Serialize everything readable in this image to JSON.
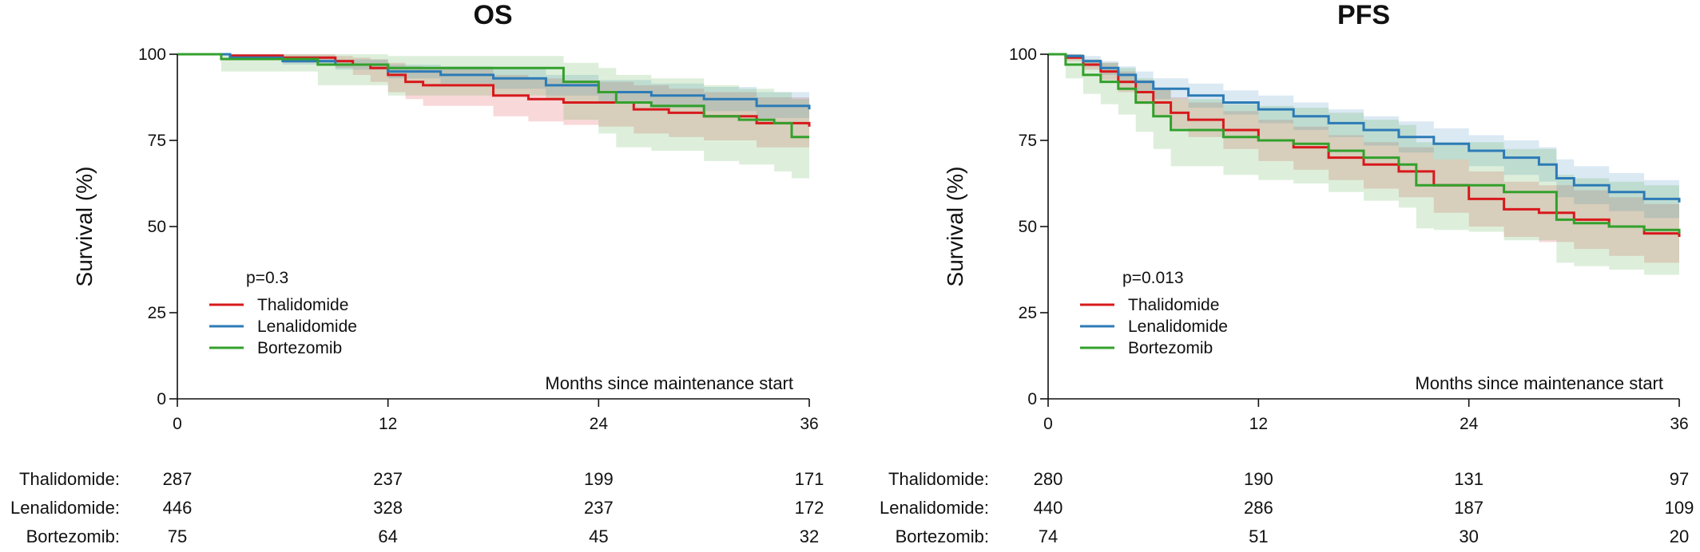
{
  "chart_data": [
    {
      "type": "line",
      "title": "OS",
      "xlabel": "Months since maintenance start",
      "ylabel": "Survival (%)",
      "xlim": [
        0,
        36
      ],
      "ylim": [
        0,
        100
      ],
      "xticks": [
        0,
        12,
        24,
        36
      ],
      "yticks": [
        0,
        25,
        50,
        75,
        100
      ],
      "grid": false,
      "legend_position": "lower-left",
      "annotation": "p=0.3",
      "series": [
        {
          "name": "Thalidomide",
          "color": "#d7191c",
          "x": [
            0,
            3,
            6,
            9,
            10,
            11,
            12,
            13,
            14,
            18,
            20,
            22,
            24,
            26,
            28,
            30,
            33,
            36
          ],
          "y": [
            100,
            99.6,
            99,
            98,
            97,
            96,
            94,
            92,
            91,
            88,
            87,
            86,
            86,
            84,
            83,
            82,
            80,
            79
          ],
          "lower": [
            100,
            99,
            97.5,
            96,
            94,
            92,
            89,
            87,
            85,
            82,
            80.5,
            79.5,
            79,
            77,
            76,
            75,
            73,
            72
          ],
          "upper": [
            100,
            100,
            100,
            99.5,
            99,
            98.5,
            97.5,
            96.5,
            96,
            94,
            93,
            92.5,
            92,
            91,
            90,
            89,
            87.5,
            86.5
          ]
        },
        {
          "name": "Lenalidomide",
          "color": "#2c7bb6",
          "x": [
            0,
            3,
            6,
            9,
            12,
            15,
            18,
            21,
            24,
            27,
            30,
            33,
            36
          ],
          "y": [
            100,
            99,
            98,
            97,
            95,
            94,
            93,
            91,
            89,
            88,
            87,
            85,
            84
          ],
          "lower": [
            100,
            98.5,
            97,
            95.5,
            93,
            91.5,
            90,
            88,
            86,
            84.5,
            83.5,
            81.5,
            80.5
          ],
          "upper": [
            100,
            100,
            99.5,
            98.5,
            97,
            96.5,
            96,
            94,
            92.5,
            91.5,
            90.5,
            89,
            88
          ]
        },
        {
          "name": "Bortezomib",
          "color": "#33a02c",
          "x": [
            0,
            2.5,
            8,
            12,
            15,
            21,
            22,
            24,
            25,
            27,
            30,
            32,
            34,
            35,
            36
          ],
          "y": [
            100,
            98.6,
            97,
            96,
            96,
            96,
            92,
            89,
            86,
            85,
            82,
            81,
            80,
            76,
            76
          ],
          "lower": [
            100,
            95,
            91,
            88,
            88,
            87,
            81,
            77,
            73,
            72,
            69,
            68,
            66,
            64,
            64
          ],
          "upper": [
            100,
            100,
            100,
            99.5,
            99.5,
            99.5,
            97.5,
            96,
            94,
            93,
            91,
            90,
            89,
            87,
            87
          ]
        }
      ],
      "risk_table": {
        "time_points": [
          "0",
          "12",
          "24",
          "36"
        ],
        "rows": [
          {
            "label": "Thalidomide:",
            "counts": [
              "287",
              "237",
              "199",
              "171"
            ]
          },
          {
            "label": "Lenalidomide:",
            "counts": [
              "446",
              "328",
              "237",
              "172"
            ]
          },
          {
            "label": "Bortezomib:",
            "counts": [
              "75",
              "64",
              "45",
              "32"
            ]
          }
        ]
      }
    },
    {
      "type": "line",
      "title": "PFS",
      "xlabel": "Months since maintenance start",
      "ylabel": "Survival (%)",
      "xlim": [
        0,
        36
      ],
      "ylim": [
        0,
        100
      ],
      "xticks": [
        0,
        12,
        24,
        36
      ],
      "yticks": [
        0,
        25,
        50,
        75,
        100
      ],
      "grid": false,
      "legend_position": "lower-left",
      "annotation": "p=0.013",
      "series": [
        {
          "name": "Thalidomide",
          "color": "#d7191c",
          "x": [
            0,
            1,
            2,
            3,
            4,
            5,
            6,
            7,
            8,
            10,
            12,
            14,
            16,
            18,
            20,
            22,
            24,
            26,
            28,
            30,
            32,
            34,
            36
          ],
          "y": [
            100,
            99,
            97,
            95,
            92,
            89,
            86,
            83,
            81,
            78,
            75,
            73,
            70,
            68,
            66,
            62,
            58,
            55,
            54,
            52,
            50,
            48,
            47
          ],
          "lower": [
            100,
            98,
            95.5,
            92.5,
            89,
            85.5,
            82,
            78.5,
            76,
            72.5,
            69,
            66.5,
            63.5,
            61,
            58.5,
            54,
            50,
            47,
            45.5,
            43.5,
            41.5,
            39.5,
            38
          ],
          "upper": [
            100,
            100,
            98.5,
            97.5,
            95,
            92.5,
            90,
            87.5,
            86,
            83.5,
            81,
            79,
            76.5,
            74.5,
            73,
            69.5,
            66,
            63,
            62,
            60.5,
            58.5,
            56.5,
            55.5
          ]
        },
        {
          "name": "Lenalidomide",
          "color": "#2c7bb6",
          "x": [
            0,
            1,
            2,
            3,
            4,
            5,
            6,
            8,
            10,
            12,
            14,
            16,
            18,
            20,
            22,
            24,
            26,
            28,
            29,
            30,
            32,
            34,
            36
          ],
          "y": [
            100,
            99.5,
            98,
            96,
            94,
            92,
            90,
            88,
            86,
            84,
            82,
            80,
            78,
            76,
            74,
            72,
            70,
            68,
            64,
            62,
            60,
            58,
            57
          ],
          "lower": [
            100,
            99,
            96.5,
            94,
            91.5,
            89,
            87,
            84.5,
            82.5,
            80,
            78,
            76,
            73.5,
            71.5,
            69.5,
            67.5,
            65,
            63,
            58.5,
            56.5,
            54.5,
            52.5,
            51.5
          ],
          "upper": [
            100,
            100,
            99.5,
            98,
            96.5,
            95,
            93,
            91.5,
            89.5,
            88,
            86,
            84,
            82,
            80.5,
            78.5,
            76.5,
            75,
            73,
            69.5,
            67.5,
            65.5,
            63.5,
            62.5
          ]
        },
        {
          "name": "Bortezomib",
          "color": "#33a02c",
          "x": [
            0,
            1,
            2,
            3,
            4,
            5,
            6,
            7,
            10,
            12,
            14,
            16,
            18,
            20,
            21,
            22,
            24,
            26,
            28,
            29,
            30,
            32,
            34,
            36
          ],
          "y": [
            100,
            97,
            94,
            92,
            90,
            86,
            82,
            78,
            76,
            75,
            74,
            72,
            70,
            68,
            62,
            62,
            62,
            60,
            60,
            52,
            51,
            50,
            49,
            48
          ],
          "lower": [
            100,
            93,
            88.5,
            85.5,
            82.5,
            77.5,
            72.5,
            67.5,
            65,
            63.5,
            62.5,
            60,
            57.5,
            55.5,
            49.5,
            49,
            48.5,
            46,
            46,
            39.5,
            38.5,
            37.5,
            36,
            35
          ],
          "upper": [
            100,
            100,
            98.5,
            97.5,
            96,
            93,
            90,
            87,
            85.5,
            85,
            84.5,
            83,
            81,
            79.5,
            74.5,
            74.5,
            74.5,
            72.5,
            72.5,
            65,
            64,
            63,
            62,
            61
          ]
        }
      ],
      "risk_table": {
        "time_points": [
          "0",
          "12",
          "24",
          "36"
        ],
        "rows": [
          {
            "label": "Thalidomide:",
            "counts": [
              "280",
              "190",
              "131",
              "97"
            ]
          },
          {
            "label": "Lenalidomide:",
            "counts": [
              "440",
              "286",
              "187",
              "109"
            ]
          },
          {
            "label": "Bortezomib:",
            "counts": [
              "74",
              "51",
              "30",
              "20"
            ]
          }
        ]
      }
    }
  ]
}
